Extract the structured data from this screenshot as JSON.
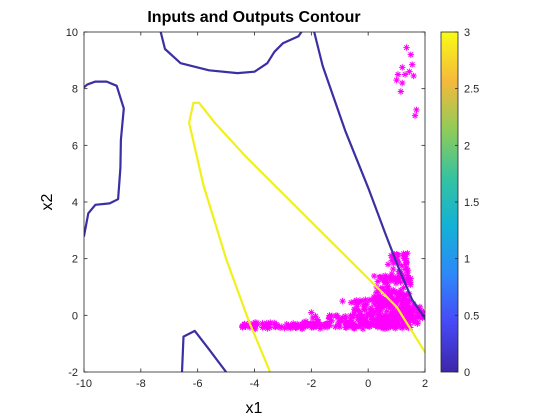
{
  "chart_data": {
    "type": "contour",
    "title": "Inputs and Outputs Contour",
    "xlabel": "x1",
    "ylabel": "x2",
    "xlim": [
      -10,
      2
    ],
    "ylim": [
      -2,
      10
    ],
    "xticks": [
      -10,
      -8,
      -6,
      -4,
      -2,
      0,
      2
    ],
    "yticks": [
      -2,
      0,
      2,
      4,
      6,
      8,
      10
    ],
    "xtick_labels": [
      "-10",
      "-8",
      "-6",
      "-4",
      "-2",
      "0",
      "2"
    ],
    "ytick_labels": [
      "-2",
      "0",
      "2",
      "4",
      "6",
      "8",
      "10"
    ],
    "colorbar": {
      "min": 0,
      "max": 3,
      "ticks": [
        0,
        0.5,
        1,
        1.5,
        2,
        2.5,
        3
      ],
      "tick_labels": [
        "0",
        "0.5",
        "1",
        "1.5",
        "2",
        "2.5",
        "3"
      ],
      "colormap": "parula",
      "stops": [
        "#3e26a8",
        "#4748f6",
        "#2e88f8",
        "#13b1d6",
        "#35c3a0",
        "#91cb58",
        "#f5ba3b",
        "#f9fb15"
      ]
    },
    "contours": [
      {
        "name": "contour-level-low-left",
        "level": 0.1,
        "color": "#3b2fa3",
        "points": [
          [
            -10,
            2.8
          ],
          [
            -9.85,
            3.6
          ],
          [
            -9.6,
            3.9
          ],
          [
            -9.1,
            3.95
          ],
          [
            -8.8,
            4.1
          ],
          [
            -8.72,
            5.2
          ],
          [
            -8.7,
            6.2
          ],
          [
            -8.6,
            7.3
          ],
          [
            -8.85,
            8.1
          ],
          [
            -9.2,
            8.25
          ],
          [
            -9.6,
            8.25
          ],
          [
            -9.88,
            8.15
          ],
          [
            -10,
            8.05
          ]
        ]
      },
      {
        "name": "contour-level-low-diagonal",
        "level": 0.1,
        "color": "#3b2fa3",
        "points": [
          [
            -7.3,
            10
          ],
          [
            -7.15,
            9.4
          ],
          [
            -6.6,
            8.9
          ],
          [
            -5.6,
            8.65
          ],
          [
            -4.6,
            8.55
          ],
          [
            -4.0,
            8.6
          ],
          [
            -3.55,
            8.9
          ],
          [
            -3.3,
            9.3
          ],
          [
            -3.0,
            9.6
          ],
          [
            -2.45,
            9.85
          ],
          [
            -2.35,
            10
          ]
        ]
      },
      {
        "name": "contour-level-low-tr",
        "level": 0.1,
        "color": "#3b2fa3",
        "points": [
          [
            -1.9,
            10
          ],
          [
            -1.6,
            8.8
          ],
          [
            -0.8,
            6.5
          ],
          [
            0.0,
            4.5
          ],
          [
            0.6,
            2.9
          ],
          [
            1.1,
            1.6
          ],
          [
            1.55,
            0.55
          ],
          [
            2.0,
            -0.1
          ]
        ]
      },
      {
        "name": "contour-level-low-bottom",
        "level": 0.1,
        "color": "#3b2fa3",
        "points": [
          [
            -6.55,
            -2
          ],
          [
            -6.5,
            -0.75
          ],
          [
            -6.1,
            -0.55
          ],
          [
            -5.6,
            -1.2
          ],
          [
            -5.0,
            -2
          ]
        ]
      },
      {
        "name": "contour-level-high",
        "level": 3,
        "color": "#f1f01a",
        "points": [
          [
            -3.45,
            -2
          ],
          [
            -4.2,
            -0.2
          ],
          [
            -5.0,
            2.0
          ],
          [
            -5.8,
            4.6
          ],
          [
            -6.3,
            6.8
          ],
          [
            -6.15,
            7.5
          ],
          [
            -5.95,
            7.5
          ],
          [
            -5.4,
            6.8
          ],
          [
            -4.3,
            5.6
          ],
          [
            -3.0,
            4.3
          ],
          [
            -1.6,
            2.9
          ],
          [
            -0.2,
            1.5
          ],
          [
            1.0,
            0.3
          ],
          [
            2.0,
            -1.3
          ]
        ]
      }
    ],
    "scatter": {
      "name": "input-output-samples",
      "marker": "*",
      "color": "#ff00ff",
      "clusters": [
        {
          "type": "band",
          "x_from": -4.5,
          "x_to": 1.5,
          "y_from": -0.48,
          "y_to": -0.25,
          "count": 130
        },
        {
          "type": "band",
          "x_from": -2.3,
          "x_to": 1.5,
          "y_from": -0.45,
          "y_to": 0.0,
          "count": 110
        },
        {
          "type": "band",
          "x_from": -0.6,
          "x_to": 1.6,
          "y_from": -0.3,
          "y_to": 0.55,
          "count": 160
        },
        {
          "type": "band",
          "x_from": 0.2,
          "x_to": 1.5,
          "y_from": 0.3,
          "y_to": 1.4,
          "count": 100
        },
        {
          "type": "band",
          "x_from": 0.8,
          "x_to": 1.4,
          "y_from": 1.3,
          "y_to": 2.2,
          "count": 45
        },
        {
          "type": "band",
          "x_from": 1.2,
          "x_to": 1.95,
          "y_from": -0.3,
          "y_to": 0.3,
          "count": 40
        }
      ],
      "points": [
        [
          -0.9,
          0.5
        ],
        [
          -0.6,
          0.45
        ],
        [
          -0.1,
          0.55
        ],
        [
          0.2,
          0.65
        ],
        [
          0.3,
          1.0
        ],
        [
          0.6,
          1.4
        ],
        [
          0.7,
          1.8
        ],
        [
          1.0,
          2.15
        ],
        [
          1.25,
          2.1
        ],
        [
          1.35,
          1.85
        ],
        [
          -2.0,
          0.1
        ],
        [
          1.35,
          9.45
        ],
        [
          1.5,
          9.2
        ],
        [
          1.55,
          8.85
        ],
        [
          1.2,
          8.75
        ],
        [
          1.45,
          8.6
        ],
        [
          1.05,
          8.5
        ],
        [
          1.3,
          8.5
        ],
        [
          1.6,
          8.45
        ],
        [
          1.0,
          8.3
        ],
        [
          1.2,
          8.2
        ],
        [
          1.15,
          7.9
        ],
        [
          1.7,
          7.25
        ],
        [
          1.65,
          7.05
        ]
      ]
    }
  }
}
